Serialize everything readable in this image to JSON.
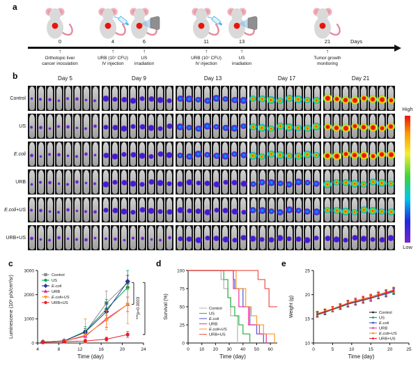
{
  "figure": {
    "panel_labels": {
      "a": "a",
      "b": "b",
      "c": "c",
      "d": "d",
      "e": "e"
    }
  },
  "timeline": {
    "days_axis_label": "Days",
    "events": [
      {
        "day": "0",
        "caption_line1": "Orthotopic liver",
        "caption_line2": "cancer inoculation",
        "icon": "mouse-icon"
      },
      {
        "day": "4",
        "caption_line1": "URB (10⁷ CFU)",
        "caption_line2": "IV injection",
        "icon": "mouse-syringe-icon"
      },
      {
        "day": "6",
        "caption_line1": "US",
        "caption_line2": "irradiation",
        "icon": "mouse-ultrasound-icon"
      },
      {
        "day": "11",
        "caption_line1": "URB (10⁷ CFU)",
        "caption_line2": "IV injection",
        "icon": "mouse-syringe-icon"
      },
      {
        "day": "13",
        "caption_line1": "US",
        "caption_line2": "irradiation",
        "icon": "mouse-ultrasound-icon"
      },
      {
        "day": "21",
        "caption_line1": "Tumor growth",
        "caption_line2": "monitoring",
        "icon": "mouse-icon"
      }
    ]
  },
  "bioluminescence_grid": {
    "day_headers": [
      "Day 5",
      "Day 9",
      "Day 13",
      "Day 17",
      "Day 21"
    ],
    "mice_per_group": 8,
    "groups": [
      {
        "label": "Control",
        "italic": false,
        "signal_levels": [
          1,
          2,
          3,
          4,
          5
        ]
      },
      {
        "label": "US",
        "italic": false,
        "signal_levels": [
          1,
          2,
          3,
          4,
          5
        ]
      },
      {
        "label": "E.coli",
        "italic": true,
        "signal_levels": [
          1,
          2,
          3,
          4,
          5
        ]
      },
      {
        "label": "URB",
        "italic": false,
        "signal_levels": [
          1,
          2,
          2,
          3,
          4
        ]
      },
      {
        "label": "E.coli+US",
        "italic": true,
        "signal_levels": [
          1,
          2,
          2,
          3,
          4
        ]
      },
      {
        "label": "URB+US",
        "italic": false,
        "signal_levels": [
          1,
          1,
          2,
          2,
          2
        ]
      }
    ],
    "colorbar": {
      "high_label": "High",
      "low_label": "Low"
    }
  },
  "chart_data": [
    {
      "panel": "c",
      "type": "line",
      "xlabel": "Time (day)",
      "ylabel": "Luminescene (10⁸ p/s/cm²/sr)",
      "xlim": [
        4,
        24
      ],
      "xticks": [
        4,
        8,
        12,
        16,
        20,
        24
      ],
      "ylim": [
        0,
        3000
      ],
      "yticks": [
        0,
        1000,
        2000,
        3000
      ],
      "x": [
        5,
        9,
        13,
        17,
        21
      ],
      "legend_position": "top-left",
      "annotation": {
        "text": "***p=0.0003"
      },
      "series": [
        {
          "name": "Control",
          "italic": false,
          "color": "#8b8b8b",
          "marker": "square",
          "values": [
            40,
            90,
            450,
            1650,
            2500
          ],
          "errors": [
            15,
            40,
            150,
            500,
            300
          ]
        },
        {
          "name": "US",
          "italic": false,
          "color": "#00a551",
          "marker": "circle",
          "values": [
            40,
            85,
            480,
            1400,
            2300
          ],
          "errors": [
            15,
            40,
            200,
            400,
            700
          ]
        },
        {
          "name": "E.coli",
          "italic": true,
          "color": "#283593",
          "marker": "diamond",
          "values": [
            40,
            85,
            450,
            1300,
            2550
          ],
          "errors": [
            15,
            40,
            150,
            350,
            250
          ]
        },
        {
          "name": "URB",
          "italic": false,
          "color": "#ee0fa0",
          "marker": "triangle-up",
          "values": [
            35,
            80,
            280,
            1000,
            1600
          ],
          "errors": [
            15,
            40,
            120,
            350,
            300
          ]
        },
        {
          "name": "E.coli+US",
          "italic": true,
          "color": "#f7941d",
          "marker": "triangle-down",
          "values": [
            35,
            80,
            320,
            950,
            1600
          ],
          "errors": [
            15,
            40,
            680,
            400,
            800
          ]
        },
        {
          "name": "URB+US",
          "italic": false,
          "color": "#ed1c24",
          "marker": "circle",
          "values": [
            30,
            60,
            80,
            160,
            350
          ],
          "errors": [
            10,
            30,
            40,
            80,
            120
          ]
        }
      ]
    },
    {
      "panel": "d",
      "type": "survival-step",
      "xlabel": "Time (day)",
      "ylabel": "Survival (%)",
      "xlim": [
        0,
        65
      ],
      "xticks": [
        0,
        10,
        20,
        30,
        40,
        50,
        60
      ],
      "ylim": [
        0,
        100
      ],
      "yticks": [
        0,
        25,
        50,
        75,
        100
      ],
      "legend_position": "left-middle",
      "series": [
        {
          "name": "Control",
          "italic": false,
          "color": "#b8b8b8",
          "points": [
            [
              0,
              100
            ],
            [
              24,
              100
            ],
            [
              24,
              87.5
            ],
            [
              26,
              87.5
            ],
            [
              26,
              75
            ],
            [
              29,
              75
            ],
            [
              29,
              62.5
            ],
            [
              31,
              62.5
            ],
            [
              31,
              37.5
            ],
            [
              36,
              37.5
            ],
            [
              36,
              0
            ]
          ]
        },
        {
          "name": "US",
          "italic": false,
          "color": "#39b54a",
          "points": [
            [
              0,
              100
            ],
            [
              26,
              100
            ],
            [
              26,
              87.5
            ],
            [
              29,
              87.5
            ],
            [
              29,
              62.5
            ],
            [
              31,
              62.5
            ],
            [
              31,
              50
            ],
            [
              34,
              50
            ],
            [
              34,
              37.5
            ],
            [
              37,
              37.5
            ],
            [
              37,
              25
            ],
            [
              40,
              25
            ],
            [
              40,
              12.5
            ],
            [
              45,
              12.5
            ],
            [
              45,
              0
            ]
          ]
        },
        {
          "name": "E.coli",
          "italic": true,
          "color": "#5f5fd3",
          "points": [
            [
              0,
              100
            ],
            [
              33,
              100
            ],
            [
              33,
              87.5
            ],
            [
              34,
              87.5
            ],
            [
              34,
              75
            ],
            [
              40,
              75
            ],
            [
              40,
              50
            ],
            [
              45,
              50
            ],
            [
              45,
              25
            ],
            [
              50,
              25
            ],
            [
              50,
              12.5
            ],
            [
              55,
              12.5
            ],
            [
              55,
              0
            ]
          ]
        },
        {
          "name": "URB",
          "italic": false,
          "color": "#ee3ba8",
          "points": [
            [
              0,
              100
            ],
            [
              33,
              100
            ],
            [
              33,
              75
            ],
            [
              37,
              75
            ],
            [
              37,
              50
            ],
            [
              44,
              50
            ],
            [
              44,
              25
            ],
            [
              52,
              25
            ],
            [
              52,
              12.5
            ],
            [
              57,
              12.5
            ],
            [
              57,
              0
            ]
          ]
        },
        {
          "name": "E.coli+US",
          "italic": true,
          "color": "#f7a13d",
          "points": [
            [
              0,
              100
            ],
            [
              35,
              100
            ],
            [
              35,
              75
            ],
            [
              42,
              75
            ],
            [
              42,
              50
            ],
            [
              46,
              50
            ],
            [
              46,
              37.5
            ],
            [
              50,
              37.5
            ],
            [
              50,
              25
            ],
            [
              55,
              25
            ],
            [
              55,
              12.5
            ],
            [
              63,
              12.5
            ],
            [
              63,
              0
            ]
          ]
        },
        {
          "name": "URB+US",
          "italic": false,
          "color": "#f15a51",
          "points": [
            [
              0,
              100
            ],
            [
              51,
              100
            ],
            [
              51,
              87.5
            ],
            [
              56,
              87.5
            ],
            [
              56,
              75
            ],
            [
              59,
              75
            ],
            [
              59,
              50
            ],
            [
              65,
              50
            ]
          ]
        }
      ]
    },
    {
      "panel": "e",
      "type": "line",
      "xlabel": "Time (day)",
      "ylabel": "Weight (g)",
      "xlim": [
        0,
        25
      ],
      "xticks": [
        0,
        5,
        10,
        15,
        20,
        25
      ],
      "ylim": [
        10,
        25
      ],
      "yticks": [
        10,
        15,
        20,
        25
      ],
      "x": [
        1,
        3,
        5,
        7,
        9,
        11,
        13,
        15,
        17,
        19,
        21
      ],
      "legend_position": "bottom-right",
      "series": [
        {
          "name": "Control",
          "italic": false,
          "color": "#231f20",
          "marker": "dot",
          "values": [
            15.9,
            16.4,
            16.9,
            17.5,
            18.1,
            18.5,
            18.9,
            19.3,
            19.8,
            20.2,
            20.7
          ],
          "errors": [
            0.5,
            0.5,
            0.5,
            0.5,
            0.6,
            0.6,
            0.6,
            0.6,
            0.6,
            0.6,
            0.6
          ]
        },
        {
          "name": "US",
          "italic": false,
          "color": "#00a551",
          "marker": "dot",
          "values": [
            15.8,
            16.3,
            16.9,
            17.4,
            18.0,
            18.4,
            18.8,
            19.2,
            19.7,
            20.1,
            20.6
          ],
          "errors": [
            0.5,
            0.5,
            0.5,
            0.5,
            0.6,
            0.6,
            0.6,
            0.6,
            0.6,
            0.6,
            0.6
          ]
        },
        {
          "name": "E.coli",
          "italic": true,
          "color": "#3a4cc0",
          "marker": "dot",
          "values": [
            16.0,
            16.4,
            17.0,
            17.5,
            18.1,
            18.5,
            18.9,
            19.3,
            19.8,
            20.2,
            20.7
          ],
          "errors": [
            0.5,
            0.5,
            0.5,
            0.5,
            0.6,
            0.6,
            0.6,
            0.6,
            0.6,
            0.6,
            0.6
          ]
        },
        {
          "name": "URB",
          "italic": false,
          "color": "#ee3ba8",
          "marker": "dot",
          "values": [
            16.0,
            16.5,
            17.0,
            17.6,
            18.2,
            18.6,
            19.0,
            19.4,
            19.9,
            20.3,
            20.8
          ],
          "errors": [
            0.5,
            0.5,
            0.5,
            0.5,
            0.6,
            0.6,
            0.6,
            0.6,
            0.6,
            0.6,
            0.6
          ]
        },
        {
          "name": "E.coli+US",
          "italic": true,
          "color": "#f7941d",
          "marker": "dot",
          "values": [
            16.1,
            16.6,
            17.1,
            17.7,
            18.3,
            18.8,
            19.2,
            19.6,
            20.1,
            20.5,
            21.0
          ],
          "errors": [
            0.5,
            0.5,
            0.5,
            0.5,
            0.6,
            0.6,
            0.6,
            0.6,
            0.6,
            0.6,
            0.6
          ]
        },
        {
          "name": "URB+US",
          "italic": false,
          "color": "#ed1c24",
          "marker": "dot",
          "values": [
            16.0,
            16.5,
            17.0,
            17.6,
            18.2,
            18.6,
            19.0,
            19.4,
            19.9,
            20.4,
            20.9
          ],
          "errors": [
            0.5,
            0.5,
            0.5,
            0.5,
            0.6,
            0.6,
            0.6,
            0.6,
            0.6,
            0.6,
            0.6
          ]
        }
      ]
    }
  ]
}
